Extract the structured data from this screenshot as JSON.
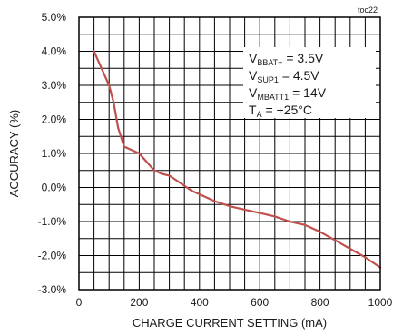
{
  "chart_data": {
    "type": "line",
    "note": "toc22",
    "xlabel": "CHARGE CURRENT SETTING (mA)",
    "ylabel": "ACCURACY (%)",
    "xlim": [
      0,
      1000
    ],
    "ylim": [
      -3.0,
      5.0
    ],
    "x_ticks": [
      "0",
      "200",
      "400",
      "600",
      "800",
      "1000"
    ],
    "y_ticks": [
      "5.0%",
      "4.0%",
      "3.0%",
      "2.0%",
      "1.0%",
      "0.0%",
      "-1.0%",
      "-2.0%",
      "-3.0%"
    ],
    "grid": true,
    "line_color": "#c0504d",
    "annotations": [
      {
        "main": "V",
        "sub": "BBAT+",
        "rest": " = 3.5V"
      },
      {
        "main": "V",
        "sub": "SUP1",
        "rest": " = 4.5V"
      },
      {
        "main": "V",
        "sub": "MBATT1",
        "rest": " = 14V"
      },
      {
        "main": "T",
        "sub": "A",
        "rest": " = +25°C"
      }
    ],
    "series": [
      {
        "x": [
          50,
          75,
          100,
          115,
          130,
          150,
          175,
          200,
          225,
          250,
          275,
          300,
          325,
          350,
          375,
          400,
          450,
          500,
          550,
          600,
          650,
          700,
          750,
          800,
          850,
          900,
          950,
          1000
        ],
        "y": [
          4.0,
          3.5,
          3.0,
          2.5,
          1.75,
          1.2,
          1.1,
          1.0,
          0.75,
          0.5,
          0.4,
          0.35,
          0.2,
          0.05,
          -0.1,
          -0.2,
          -0.4,
          -0.55,
          -0.65,
          -0.75,
          -0.85,
          -1.0,
          -1.1,
          -1.3,
          -1.55,
          -1.8,
          -2.05,
          -2.35
        ]
      }
    ]
  }
}
